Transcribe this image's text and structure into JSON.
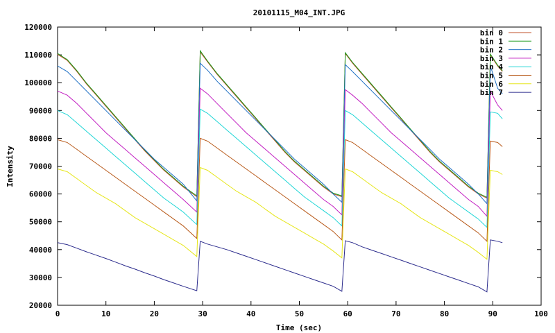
{
  "chart_data": {
    "type": "line",
    "title": "20101115_M04_INT.JPG",
    "xlabel": "Time (sec)",
    "ylabel": "Intensity",
    "xlim": [
      0,
      100
    ],
    "ylim": [
      20000,
      120000
    ],
    "x_ticks": [
      "0",
      "10",
      "20",
      "30",
      "40",
      "50",
      "60",
      "70",
      "80",
      "90",
      "100"
    ],
    "y_ticks": [
      "20000",
      "30000",
      "40000",
      "50000",
      "60000",
      "70000",
      "80000",
      "90000",
      "100000",
      "110000",
      "120000"
    ],
    "grid": false,
    "legend_position": "top-right",
    "x": [
      0,
      2,
      4,
      6,
      8,
      10,
      12,
      14,
      16,
      18,
      20,
      22,
      24,
      26,
      28.8,
      29.5,
      31,
      33,
      35,
      37,
      39,
      41,
      43,
      45,
      47,
      49,
      51,
      53,
      55,
      57,
      58.8,
      59.5,
      61,
      63,
      65,
      67,
      69,
      71,
      73,
      75,
      77,
      79,
      81,
      83,
      85,
      87,
      88.8,
      89.5,
      91,
      92
    ],
    "series": [
      {
        "name": "bin 0",
        "color": "#c0502a",
        "values": [
          110200,
          108000,
          104000,
          99500,
          95500,
          91500,
          87500,
          83500,
          79500,
          75500,
          72000,
          68500,
          65500,
          62500,
          59000,
          111000,
          107500,
          103000,
          99000,
          95000,
          91000,
          87000,
          83000,
          79000,
          75000,
          71500,
          68500,
          65500,
          62500,
          60000,
          59000,
          110500,
          107000,
          103000,
          99000,
          95000,
          91000,
          87000,
          83000,
          79000,
          75000,
          71500,
          68500,
          65500,
          62500,
          60000,
          58500,
          110000,
          106000,
          104000
        ]
      },
      {
        "name": "bin 1",
        "color": "#1b9a1b",
        "values": [
          110500,
          108300,
          104300,
          99800,
          95800,
          91800,
          87800,
          83800,
          79800,
          75800,
          72300,
          68800,
          65800,
          62800,
          59300,
          111500,
          107800,
          103300,
          99300,
          95300,
          91300,
          87300,
          83300,
          79300,
          75300,
          71800,
          68800,
          65800,
          62800,
          60300,
          59300,
          110800,
          107300,
          103300,
          99300,
          95300,
          91300,
          87300,
          83300,
          79300,
          75300,
          71800,
          68800,
          65800,
          62800,
          60300,
          58800,
          110300,
          106300,
          104300
        ]
      },
      {
        "name": "bin 2",
        "color": "#1e6fc4",
        "values": [
          106000,
          104000,
          100500,
          97000,
          93500,
          90000,
          86500,
          83000,
          79500,
          76000,
          72500,
          69500,
          66500,
          63500,
          57500,
          107000,
          104500,
          100500,
          97000,
          93500,
          90000,
          86500,
          83000,
          79500,
          76000,
          72500,
          69500,
          66500,
          63500,
          60000,
          57000,
          106500,
          104000,
          100500,
          97000,
          93500,
          90000,
          86500,
          83000,
          79500,
          76000,
          72500,
          69500,
          66500,
          63500,
          60000,
          56500,
          106000,
          98000,
          96000
        ]
      },
      {
        "name": "bin 3",
        "color": "#c21fc2",
        "values": [
          97000,
          95500,
          92500,
          89000,
          85500,
          82000,
          79000,
          76000,
          73000,
          70000,
          67000,
          64000,
          61000,
          58000,
          53500,
          98000,
          96000,
          92500,
          89000,
          85500,
          82000,
          79000,
          76000,
          73000,
          70000,
          67000,
          64000,
          61000,
          58000,
          55500,
          52500,
          97500,
          95500,
          92500,
          89000,
          85500,
          82000,
          79000,
          76000,
          73000,
          70000,
          67000,
          64000,
          61000,
          58000,
          55500,
          52000,
          97000,
          92000,
          90000
        ]
      },
      {
        "name": "bin 4",
        "color": "#1fd6d6",
        "values": [
          90000,
          88500,
          85500,
          82500,
          79500,
          76500,
          73500,
          70500,
          67500,
          64500,
          61500,
          58500,
          56000,
          53500,
          49000,
          90500,
          89000,
          86000,
          83000,
          80000,
          77000,
          74000,
          71000,
          68000,
          65000,
          62000,
          59000,
          56500,
          54000,
          51500,
          48500,
          90000,
          88500,
          85500,
          82500,
          79500,
          76500,
          73500,
          70500,
          67500,
          64500,
          61500,
          58500,
          56000,
          53500,
          51000,
          48000,
          89500,
          89000,
          87000
        ]
      },
      {
        "name": "bin 5",
        "color": "#b85a1a",
        "values": [
          79500,
          78500,
          76000,
          73500,
          71000,
          68500,
          66000,
          63500,
          61000,
          58500,
          56000,
          53500,
          51000,
          48500,
          44000,
          80000,
          79000,
          76500,
          74000,
          71500,
          69000,
          66500,
          64000,
          61500,
          59000,
          56500,
          54000,
          51500,
          49000,
          46500,
          43500,
          79500,
          78500,
          76000,
          73500,
          71000,
          68500,
          66000,
          63500,
          61000,
          58500,
          56000,
          53500,
          51000,
          48500,
          46000,
          43000,
          79000,
          78500,
          77000
        ]
      },
      {
        "name": "bin 6",
        "color": "#e6e61a",
        "values": [
          69000,
          68000,
          65500,
          63000,
          60500,
          58500,
          56500,
          54000,
          51500,
          49500,
          47500,
          45500,
          43500,
          41500,
          37500,
          69500,
          68500,
          66000,
          63500,
          61000,
          59000,
          57000,
          54500,
          52000,
          50000,
          48000,
          46000,
          44000,
          42000,
          39500,
          37000,
          69000,
          68000,
          65500,
          63000,
          60500,
          58500,
          56500,
          54000,
          51500,
          49500,
          47500,
          45500,
          43500,
          41500,
          39000,
          36500,
          68500,
          68000,
          67000
        ]
      },
      {
        "name": "bin 7",
        "color": "#2b2b8c",
        "values": [
          42500,
          41800,
          40500,
          39200,
          38000,
          36800,
          35500,
          34200,
          33000,
          31700,
          30500,
          29200,
          28000,
          26800,
          25200,
          43000,
          42000,
          41000,
          40000,
          38800,
          37600,
          36400,
          35200,
          34000,
          32800,
          31600,
          30400,
          29200,
          28000,
          26800,
          25000,
          43200,
          42500,
          41000,
          39800,
          38600,
          37400,
          36200,
          35000,
          33800,
          32600,
          31400,
          30200,
          29000,
          27800,
          26600,
          24800,
          43500,
          43000,
          42500
        ]
      }
    ]
  }
}
